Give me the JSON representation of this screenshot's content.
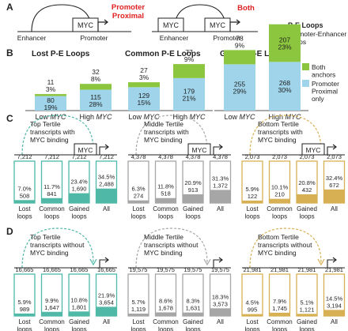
{
  "colors": {
    "red": "#e02020",
    "green_seg": "#8cc63e",
    "blue_seg": "#9fd4ea",
    "teal": "#4fb8a7",
    "gray": "#a6a6a6",
    "gold": "#d8b054",
    "dark": "#222222"
  },
  "panel_a": {
    "letter": "A",
    "promoter_proximal": [
      "Promoter",
      "Proximal"
    ],
    "both": "Both",
    "enhancer": "Enhancer",
    "promoter": "Promoter",
    "myc": "MYC",
    "legend_title": "P-E Loops",
    "legend_sub": "Promoter-Enhancer",
    "legend_sub2": "Loops"
  },
  "panel_b": {
    "letter": "B",
    "legend": [
      {
        "label": [
          "Both",
          "anchors"
        ],
        "color": "#8cc63e"
      },
      {
        "label": [
          "Promoter",
          "Proximal",
          "only"
        ],
        "color": "#9fd4ea"
      }
    ],
    "groups": [
      {
        "title": "Lost P-E Loops",
        "bars": [
          {
            "label": "Low MYC",
            "italic": "MYC",
            "pre": "Low ",
            "bottom": 80,
            "bottom_pct": "19%",
            "top": 11,
            "top_pct": "3%"
          },
          {
            "label": "High MYC",
            "italic": "MYC",
            "pre": "High ",
            "bottom": 115,
            "bottom_pct": "28%",
            "top": 32,
            "top_pct": "8%"
          }
        ]
      },
      {
        "title": "Common P-E Loops",
        "bars": [
          {
            "label": "Low MYC",
            "italic": "MYC",
            "pre": "Low ",
            "bottom": 129,
            "bottom_pct": "15%",
            "top": 27,
            "top_pct": "3%"
          },
          {
            "label": "High MYC",
            "italic": "MYC",
            "pre": "High ",
            "bottom": 179,
            "bottom_pct": "21%",
            "top": 77,
            "top_pct": "9%"
          }
        ]
      },
      {
        "title": "Gained P-E Loops",
        "bars": [
          {
            "label": "Low MYC",
            "italic": "MYC",
            "pre": "Low ",
            "bottom": 255,
            "bottom_pct": "29%",
            "top": 78,
            "top_pct": "9%"
          },
          {
            "label": "High MYC",
            "italic": "MYC",
            "pre": "High ",
            "bottom": 268,
            "bottom_pct": "30%",
            "top": 207,
            "top_pct": "23%"
          }
        ]
      }
    ]
  },
  "panel_c": {
    "letter": "C",
    "groups": [
      {
        "title": [
          "Top Tertile",
          "transcripts with",
          "MYC binding"
        ],
        "color": "#4fb8a7",
        "myc_box": "MYC",
        "bars": [
          {
            "total": "7,212",
            "pct": "7.0%",
            "count": "508",
            "frac": 0.07,
            "label": [
              "Lost",
              "loops"
            ]
          },
          {
            "total": "7,212",
            "pct": "11.7%",
            "count": "841",
            "frac": 0.117,
            "label": [
              "Common",
              "loops"
            ]
          },
          {
            "total": "7,212",
            "pct": "23.4%",
            "count": "1,690",
            "frac": 0.234,
            "label": [
              "Gained",
              "loops"
            ]
          },
          {
            "total": "7,212",
            "pct": "34.5%",
            "count": "2,488",
            "frac": 0.345,
            "label": [
              "All"
            ]
          }
        ]
      },
      {
        "title": [
          "Middle Tertile",
          "transcripts with",
          "MYC binding"
        ],
        "color": "#a6a6a6",
        "myc_box": "MYC",
        "bars": [
          {
            "total": "4,378",
            "pct": "6.3%",
            "count": "274",
            "frac": 0.063,
            "label": [
              "Lost",
              "loops"
            ]
          },
          {
            "total": "4,378",
            "pct": "11.8%",
            "count": "518",
            "frac": 0.118,
            "label": [
              "Common",
              "loops"
            ]
          },
          {
            "total": "4,378",
            "pct": "20.9%",
            "count": "913",
            "frac": 0.209,
            "label": [
              "Gained",
              "loops"
            ]
          },
          {
            "total": "4,378",
            "pct": "31.3%",
            "count": "1,372",
            "frac": 0.313,
            "label": [
              "All"
            ]
          }
        ]
      },
      {
        "title": [
          "Bottom Tertile",
          "transcripts with",
          "MYC binding"
        ],
        "color": "#d8b054",
        "myc_box": "MYC",
        "bars": [
          {
            "total": "2,073",
            "pct": "5.9%",
            "count": "122",
            "frac": 0.059,
            "label": [
              "Lost",
              "loops"
            ]
          },
          {
            "total": "2,073",
            "pct": "10.1%",
            "count": "210",
            "frac": 0.101,
            "label": [
              "Common",
              "loops"
            ]
          },
          {
            "total": "2,073",
            "pct": "20.8%",
            "count": "432",
            "frac": 0.208,
            "label": [
              "Gained",
              "loops"
            ]
          },
          {
            "total": "2,073",
            "pct": "32.4%",
            "count": "672",
            "frac": 0.324,
            "label": [
              "All"
            ]
          }
        ]
      }
    ]
  },
  "panel_d": {
    "letter": "D",
    "groups": [
      {
        "title": [
          "Top Tertile",
          "transcripts without",
          "MYC binding"
        ],
        "color": "#4fb8a7",
        "bars": [
          {
            "total": "16,665",
            "pct": "5.9%",
            "count": "989",
            "frac": 0.059,
            "label": [
              "Lost",
              "loops"
            ]
          },
          {
            "total": "16,665",
            "pct": "9.9%",
            "count": "1,647",
            "frac": 0.099,
            "label": [
              "Common",
              "loops"
            ]
          },
          {
            "total": "16,665",
            "pct": "10.8%",
            "count": "1,801",
            "frac": 0.108,
            "label": [
              "Gained",
              "loops"
            ]
          },
          {
            "total": "16,665",
            "pct": "21.9%",
            "count": "3,654",
            "frac": 0.219,
            "label": [
              "All"
            ]
          }
        ]
      },
      {
        "title": [
          "Middle Tertile",
          "transcripts without",
          "MYC binding"
        ],
        "color": "#a6a6a6",
        "bars": [
          {
            "total": "19,575",
            "pct": "5.7%",
            "count": "1,119",
            "frac": 0.057,
            "label": [
              "Lost",
              "loops"
            ]
          },
          {
            "total": "19,575",
            "pct": "8.6%",
            "count": "1,678",
            "frac": 0.086,
            "label": [
              "Common",
              "loops"
            ]
          },
          {
            "total": "19,575",
            "pct": "8.3%",
            "count": "1,631",
            "frac": 0.083,
            "label": [
              "Gained",
              "loops"
            ]
          },
          {
            "total": "19,575",
            "pct": "18.3%",
            "count": "3,573",
            "frac": 0.183,
            "label": [
              "All"
            ]
          }
        ]
      },
      {
        "title": [
          "Bottom Tertile",
          "transcripts without",
          "MYC binding"
        ],
        "color": "#d8b054",
        "bars": [
          {
            "total": "21,981",
            "pct": "4.5%",
            "count": "995",
            "frac": 0.045,
            "label": [
              "Lost",
              "loops"
            ]
          },
          {
            "total": "21,981",
            "pct": "7.9%",
            "count": "1,745",
            "frac": 0.079,
            "label": [
              "Common",
              "loops"
            ]
          },
          {
            "total": "21,981",
            "pct": "5.1%",
            "count": "1,121",
            "frac": 0.051,
            "label": [
              "Gained",
              "loops"
            ]
          },
          {
            "total": "21,981",
            "pct": "14.5%",
            "count": "3,194",
            "frac": 0.145,
            "label": [
              "All"
            ]
          }
        ]
      }
    ]
  }
}
